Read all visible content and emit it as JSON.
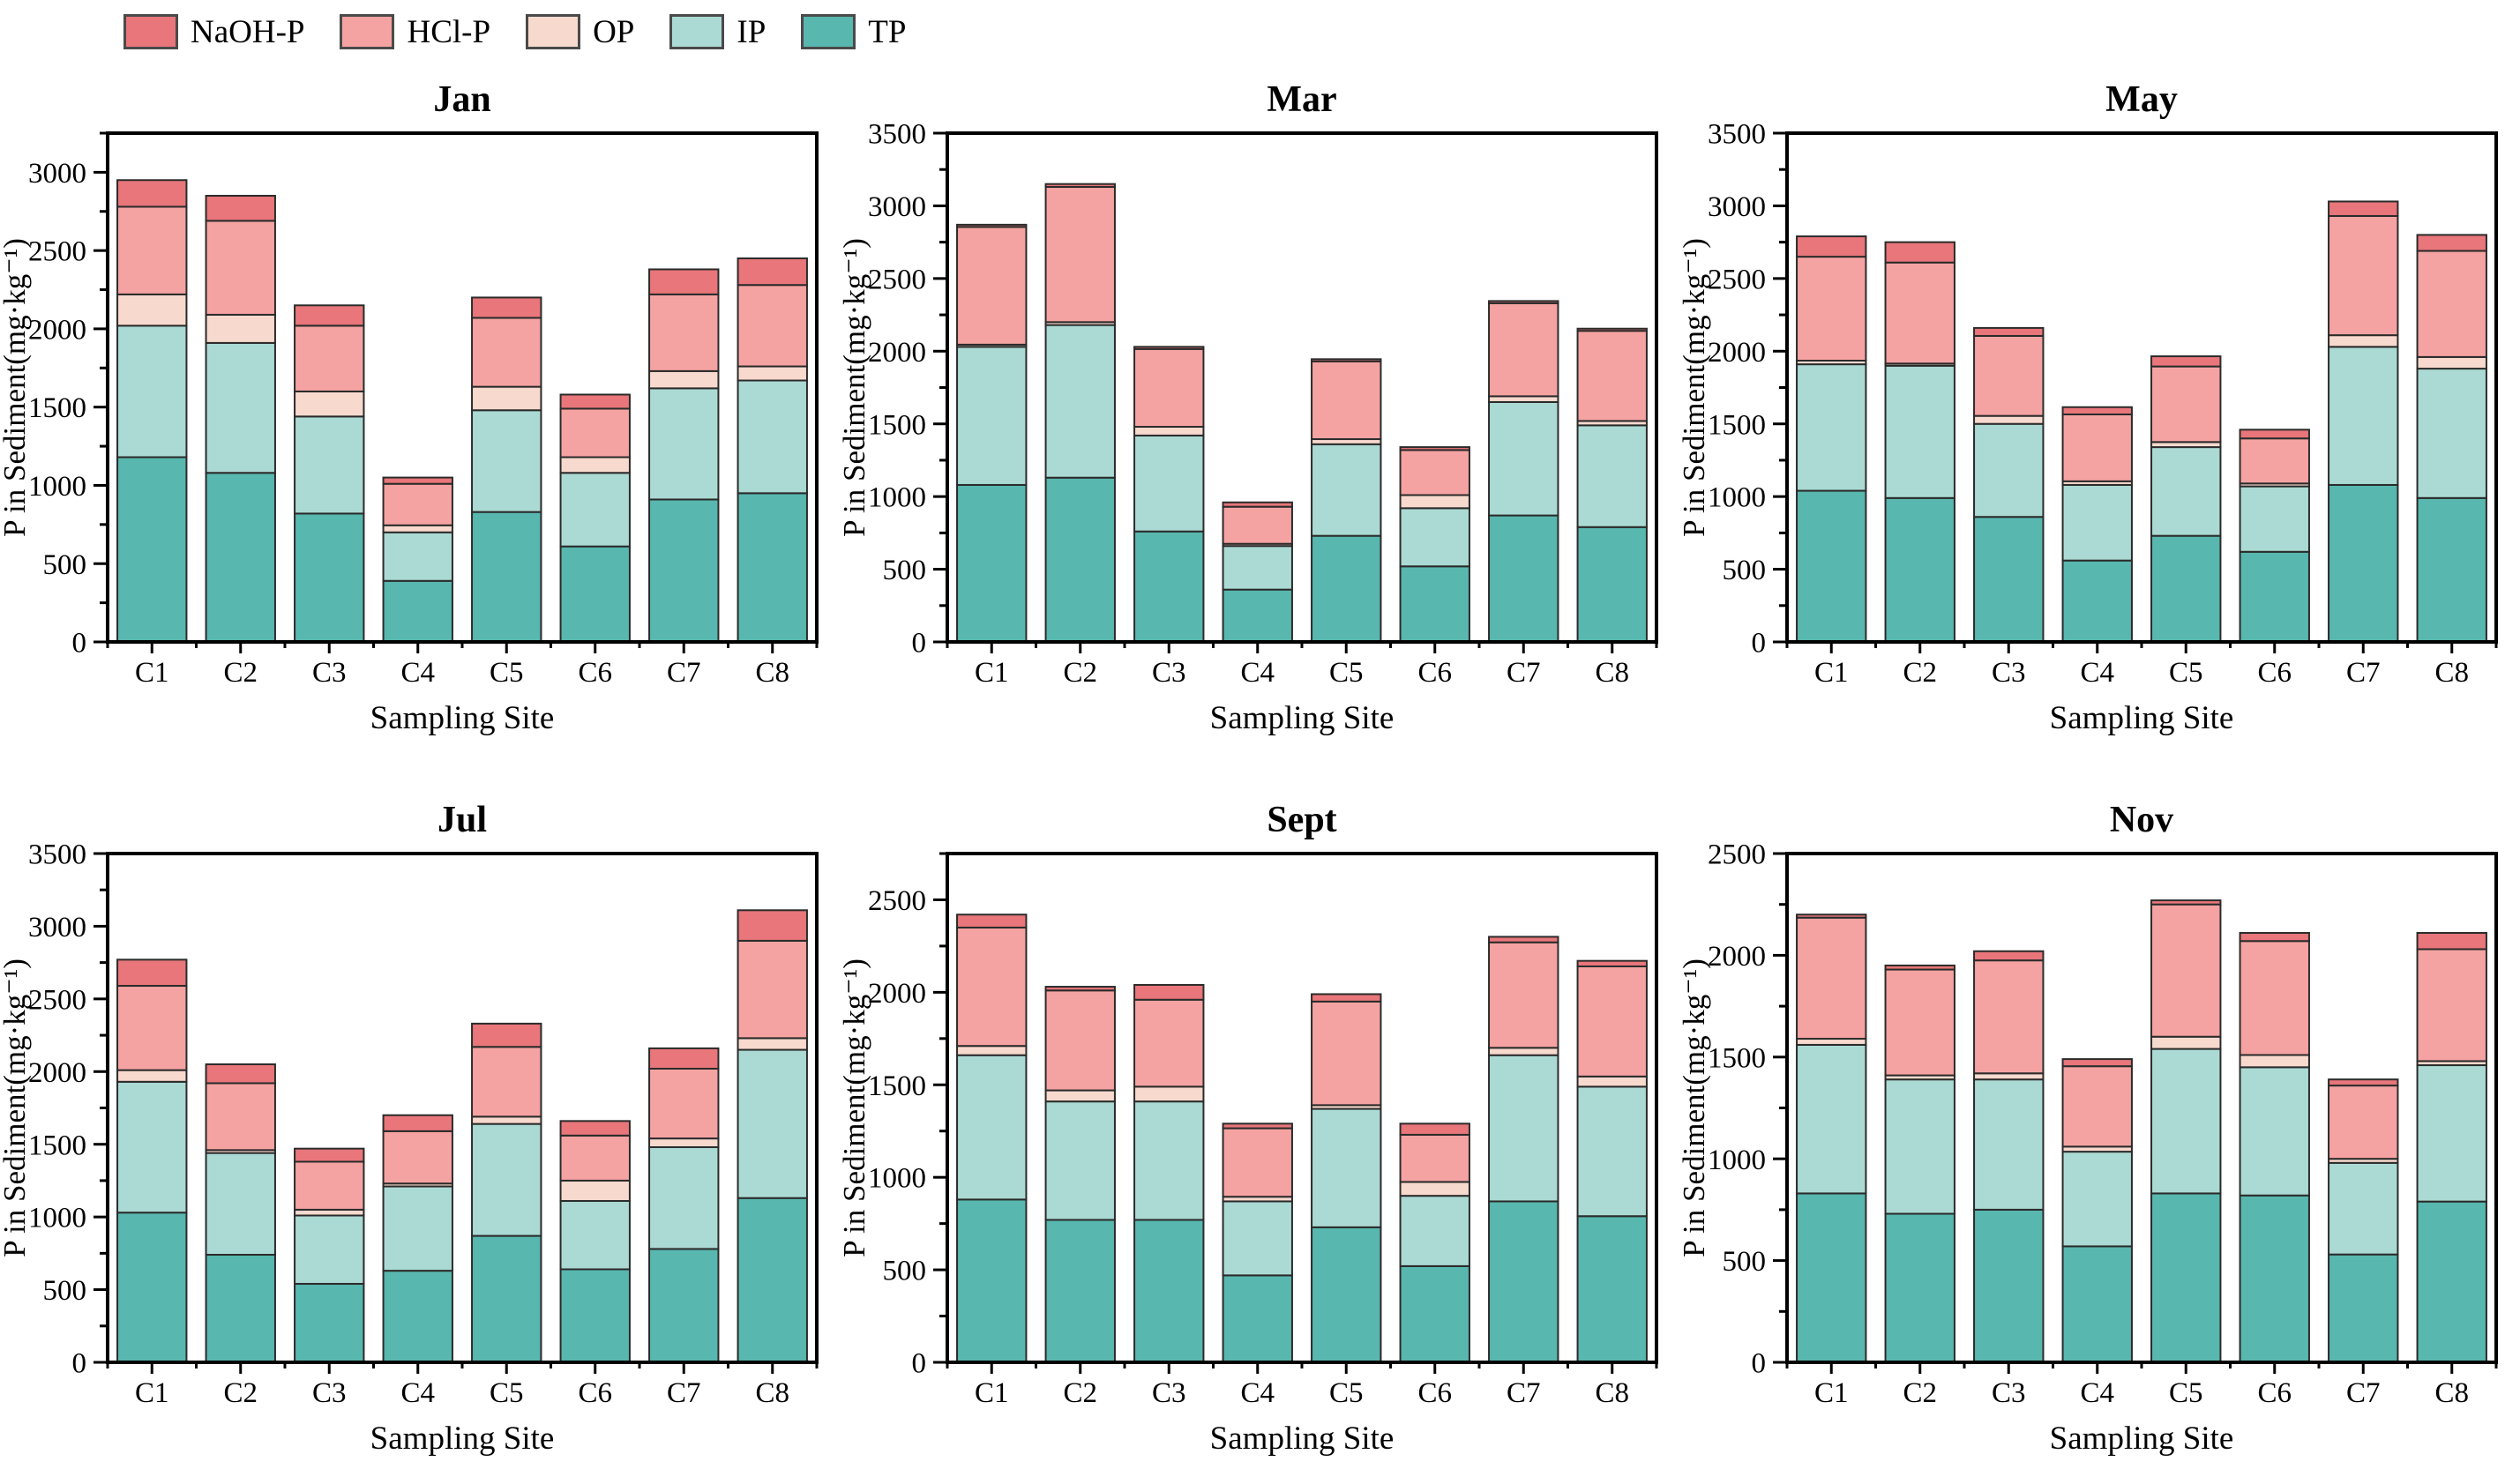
{
  "legend": {
    "items": [
      {
        "label": "NaOH-P",
        "color": "#e8767a"
      },
      {
        "label": "HCl-P",
        "color": "#f5a3a2"
      },
      {
        "label": "OP",
        "color": "#f8d9ce"
      },
      {
        "label": "IP",
        "color": "#abdad4"
      },
      {
        "label": "TP",
        "color": "#58b7ae"
      }
    ]
  },
  "chart_data": [
    {
      "type": "bar",
      "stacked": true,
      "title": "Jan",
      "xlabel": "Sampling Site",
      "ylabel": "P in Sediment(mg·kg⁻¹)",
      "categories": [
        "C1",
        "C2",
        "C3",
        "C4",
        "C5",
        "C6",
        "C7",
        "C8"
      ],
      "ylim": [
        0,
        3250
      ],
      "major_tick": 500,
      "minor_tick": 250,
      "stack_order": [
        "TP",
        "IP",
        "OP",
        "HCl-P",
        "NaOH-P"
      ],
      "series": [
        {
          "name": "TP",
          "values": [
            1180,
            1080,
            820,
            390,
            830,
            610,
            910,
            950
          ]
        },
        {
          "name": "IP",
          "values": [
            840,
            830,
            620,
            310,
            650,
            470,
            710,
            720
          ]
        },
        {
          "name": "OP",
          "values": [
            200,
            180,
            160,
            45,
            150,
            100,
            110,
            90
          ]
        },
        {
          "name": "HCl-P",
          "values": [
            560,
            600,
            420,
            265,
            440,
            310,
            490,
            520
          ]
        },
        {
          "name": "NaOH-P",
          "values": [
            170,
            160,
            130,
            40,
            130,
            90,
            160,
            170
          ]
        }
      ]
    },
    {
      "type": "bar",
      "stacked": true,
      "title": "Mar",
      "xlabel": "Sampling Site",
      "ylabel": "P in Sediment(mg·kg⁻¹)",
      "categories": [
        "C1",
        "C2",
        "C3",
        "C4",
        "C5",
        "C6",
        "C7",
        "C8"
      ],
      "ylim": [
        0,
        3500
      ],
      "major_tick": 500,
      "minor_tick": 250,
      "stack_order": [
        "TP",
        "IP",
        "OP",
        "HCl-P",
        "NaOH-P"
      ],
      "series": [
        {
          "name": "TP",
          "values": [
            1080,
            1130,
            760,
            360,
            730,
            520,
            870,
            790
          ]
        },
        {
          "name": "IP",
          "values": [
            950,
            1050,
            660,
            300,
            630,
            400,
            780,
            700
          ]
        },
        {
          "name": "OP",
          "values": [
            15,
            20,
            60,
            15,
            35,
            90,
            40,
            30
          ]
        },
        {
          "name": "HCl-P",
          "values": [
            810,
            930,
            535,
            255,
            535,
            310,
            640,
            620
          ]
        },
        {
          "name": "NaOH-P",
          "values": [
            15,
            20,
            15,
            30,
            15,
            20,
            15,
            15
          ]
        }
      ]
    },
    {
      "type": "bar",
      "stacked": true,
      "title": "May",
      "xlabel": "Sampling Site",
      "ylabel": "P in Sediment(mg·kg⁻¹)",
      "categories": [
        "C1",
        "C2",
        "C3",
        "C4",
        "C5",
        "C6",
        "C7",
        "C8"
      ],
      "ylim": [
        0,
        3500
      ],
      "major_tick": 500,
      "minor_tick": 250,
      "stack_order": [
        "TP",
        "IP",
        "OP",
        "HCl-P",
        "NaOH-P"
      ],
      "series": [
        {
          "name": "TP",
          "values": [
            1040,
            990,
            860,
            560,
            730,
            620,
            1080,
            990
          ]
        },
        {
          "name": "IP",
          "values": [
            870,
            910,
            640,
            520,
            610,
            450,
            950,
            890
          ]
        },
        {
          "name": "OP",
          "values": [
            25,
            15,
            55,
            25,
            35,
            20,
            80,
            80
          ]
        },
        {
          "name": "HCl-P",
          "values": [
            715,
            695,
            550,
            460,
            520,
            310,
            820,
            730
          ]
        },
        {
          "name": "NaOH-P",
          "values": [
            140,
            140,
            55,
            50,
            70,
            60,
            100,
            110
          ]
        }
      ]
    },
    {
      "type": "bar",
      "stacked": true,
      "title": "Jul",
      "xlabel": "Sampling Site",
      "ylabel": "P in Sediment(mg·kg⁻¹)",
      "categories": [
        "C1",
        "C2",
        "C3",
        "C4",
        "C5",
        "C6",
        "C7",
        "C8"
      ],
      "ylim": [
        0,
        3500
      ],
      "major_tick": 500,
      "minor_tick": 250,
      "stack_order": [
        "TP",
        "IP",
        "OP",
        "HCl-P",
        "NaOH-P"
      ],
      "series": [
        {
          "name": "TP",
          "values": [
            1030,
            740,
            540,
            630,
            870,
            640,
            780,
            1130
          ]
        },
        {
          "name": "IP",
          "values": [
            900,
            700,
            470,
            580,
            770,
            470,
            700,
            1020
          ]
        },
        {
          "name": "OP",
          "values": [
            80,
            20,
            40,
            20,
            50,
            140,
            60,
            80
          ]
        },
        {
          "name": "HCl-P",
          "values": [
            580,
            460,
            330,
            360,
            480,
            310,
            480,
            670
          ]
        },
        {
          "name": "NaOH-P",
          "values": [
            180,
            130,
            90,
            110,
            160,
            100,
            140,
            210
          ]
        }
      ]
    },
    {
      "type": "bar",
      "stacked": true,
      "title": "Sept",
      "xlabel": "Sampling Site",
      "ylabel": "P in Sediment(mg·kg⁻¹)",
      "categories": [
        "C1",
        "C2",
        "C3",
        "C4",
        "C5",
        "C6",
        "C7",
        "C8"
      ],
      "ylim": [
        0,
        2750
      ],
      "major_tick": 500,
      "minor_tick": 250,
      "stack_order": [
        "TP",
        "IP",
        "OP",
        "HCl-P",
        "NaOH-P"
      ],
      "series": [
        {
          "name": "TP",
          "values": [
            880,
            770,
            770,
            470,
            730,
            520,
            870,
            790
          ]
        },
        {
          "name": "IP",
          "values": [
            780,
            640,
            640,
            400,
            640,
            380,
            790,
            700
          ]
        },
        {
          "name": "OP",
          "values": [
            50,
            60,
            80,
            25,
            20,
            75,
            40,
            55
          ]
        },
        {
          "name": "HCl-P",
          "values": [
            640,
            540,
            470,
            370,
            560,
            255,
            570,
            595
          ]
        },
        {
          "name": "NaOH-P",
          "values": [
            70,
            20,
            80,
            25,
            40,
            60,
            30,
            30
          ]
        }
      ]
    },
    {
      "type": "bar",
      "stacked": true,
      "title": "Nov",
      "xlabel": "Sampling Site",
      "ylabel": "P in Sediment(mg·kg⁻¹)",
      "categories": [
        "C1",
        "C2",
        "C3",
        "C4",
        "C5",
        "C6",
        "C7",
        "C8"
      ],
      "ylim": [
        0,
        2500
      ],
      "major_tick": 500,
      "minor_tick": 250,
      "stack_order": [
        "TP",
        "IP",
        "OP",
        "HCl-P",
        "NaOH-P"
      ],
      "series": [
        {
          "name": "TP",
          "values": [
            830,
            730,
            750,
            570,
            830,
            820,
            530,
            790
          ]
        },
        {
          "name": "IP",
          "values": [
            730,
            660,
            640,
            465,
            710,
            630,
            450,
            670
          ]
        },
        {
          "name": "OP",
          "values": [
            30,
            20,
            30,
            25,
            60,
            60,
            20,
            20
          ]
        },
        {
          "name": "HCl-P",
          "values": [
            595,
            520,
            555,
            395,
            650,
            560,
            360,
            550
          ]
        },
        {
          "name": "NaOH-P",
          "values": [
            15,
            20,
            45,
            35,
            20,
            40,
            30,
            80
          ]
        }
      ]
    }
  ],
  "style": {
    "bar_outline": "#2b2b2b",
    "axis_color": "#000000"
  }
}
